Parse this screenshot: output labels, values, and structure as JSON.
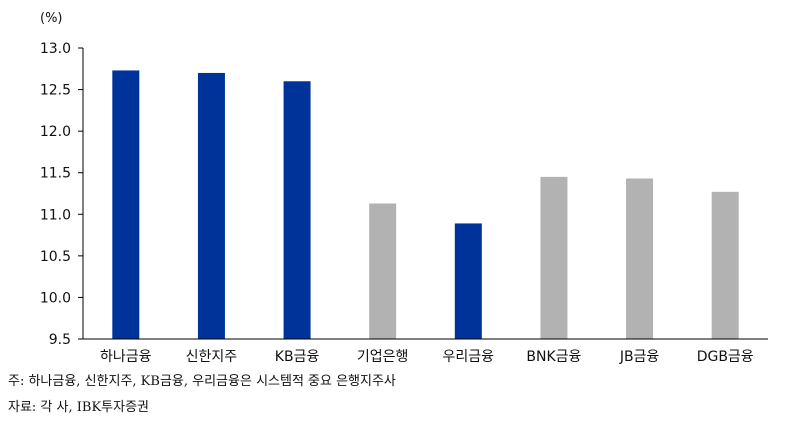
{
  "chart_data": {
    "type": "bar",
    "ylabel": "(%)",
    "ylim": [
      9.5,
      13.0
    ],
    "yticks": [
      9.5,
      10.0,
      10.5,
      11.0,
      11.5,
      12.0,
      12.5,
      13.0
    ],
    "ytick_labels": [
      "9.5",
      "10.0",
      "10.5",
      "11.0",
      "11.5",
      "12.0",
      "12.5",
      "13.0"
    ],
    "categories": [
      "하나금융",
      "신한지주",
      "KB금융",
      "기업은행",
      "우리금융",
      "BNK금융",
      "JB금융",
      "DGB금융"
    ],
    "values": [
      12.73,
      12.7,
      12.6,
      11.13,
      10.89,
      11.45,
      11.43,
      11.27
    ],
    "colors": [
      "#003399",
      "#003399",
      "#003399",
      "#b2b2b2",
      "#003399",
      "#b2b2b2",
      "#b2b2b2",
      "#b2b2b2"
    ],
    "grid": false,
    "legend": "none"
  },
  "notes": {
    "note": "주: 하나금융, 신한지주, KB금융, 우리금융은 시스템적 중요 은행지주사",
    "source": "자료: 각 사, IBK투자증권"
  }
}
